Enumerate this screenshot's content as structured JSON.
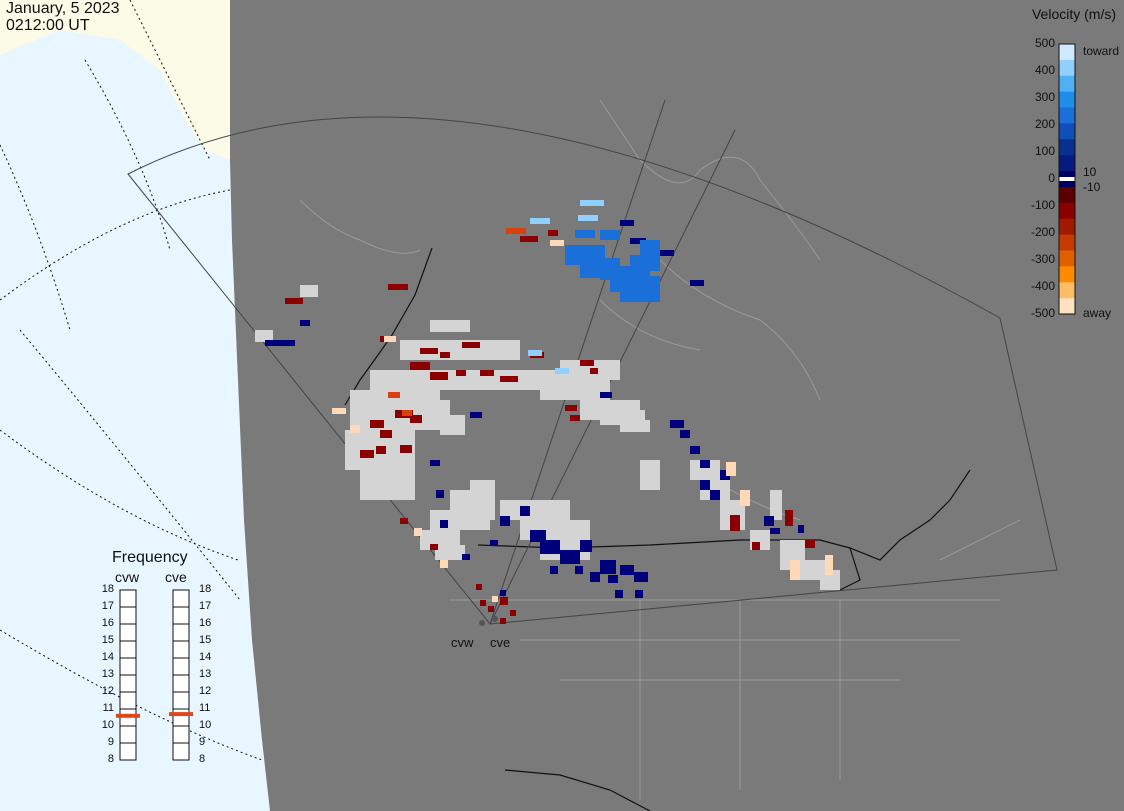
{
  "header": {
    "date": "January, 5 2023",
    "time": "0212:00 UT"
  },
  "legend": {
    "title": "Velocity (m/s)",
    "ticks": [
      "500",
      "400",
      "300",
      "200",
      "100",
      "0",
      "-100",
      "-200",
      "-300",
      "-400",
      "-500"
    ],
    "small_ticks": [
      "10",
      "-10"
    ],
    "top_label": "toward",
    "bottom_label": "away",
    "colors": [
      "#cfe9ff",
      "#8fd0ff",
      "#4fb0f5",
      "#1f8ee8",
      "#1a6fd8",
      "#0f4fb8",
      "#083090",
      "#061a80",
      "#000060",
      "#5a0000",
      "#8a0000",
      "#a01a00",
      "#c43a00",
      "#e06000",
      "#ff8a00",
      "#ffbb66",
      "#ffe0c0"
    ]
  },
  "frequency": {
    "title": "Frequency",
    "radars": [
      "cvw",
      "cve"
    ],
    "scale": [
      "18",
      "17",
      "16",
      "15",
      "14",
      "13",
      "12",
      "11",
      "10",
      "9",
      "8"
    ],
    "current_mhz": {
      "cvw": 10.6,
      "cve": 10.7
    },
    "marker_color": "#e0461c"
  },
  "map": {
    "radar_labels": [
      "cvw",
      "cve"
    ],
    "background": "#7a7a7a",
    "ocean": "#e8f6ff",
    "land_outside": "#fbfbe8",
    "scatter_colors": {
      "gray": "#d4d4d4",
      "neg": "#8b0000",
      "pos": "#00007a",
      "orange": "#d84010",
      "peach": "#ffd8b8",
      "lightblue": "#8fd0ff",
      "blue": "#1a6fd8"
    }
  }
}
